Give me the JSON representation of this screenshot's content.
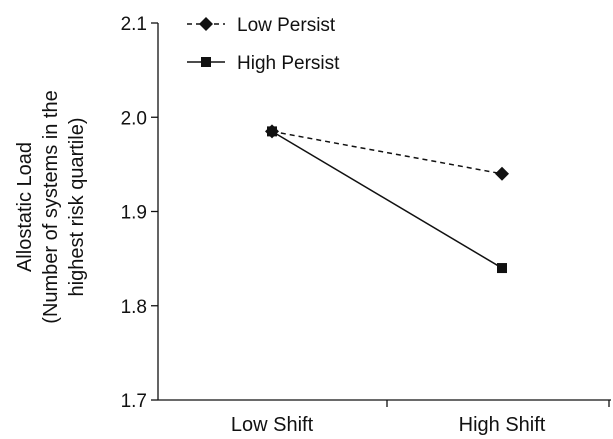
{
  "chart_data": {
    "type": "line",
    "categories": [
      "Low Shift",
      "High Shift"
    ],
    "series": [
      {
        "name": "Low Persist",
        "values": [
          1.985,
          1.94
        ],
        "line_style": "dashed",
        "marker": "diamond",
        "color": "#111111"
      },
      {
        "name": "High Persist",
        "values": [
          1.985,
          1.84
        ],
        "line_style": "solid",
        "marker": "square",
        "color": "#111111"
      }
    ],
    "title": "",
    "xlabel": "",
    "ylabel_lines": [
      "Allostatic Load",
      "(Number of systems in the",
      "highest risk quartile)"
    ],
    "ylim": [
      1.7,
      2.1
    ],
    "yticks": [
      "1.7",
      "1.8",
      "1.9",
      "2.0",
      "2.1"
    ],
    "grid": false,
    "legend_position": "top-left"
  }
}
